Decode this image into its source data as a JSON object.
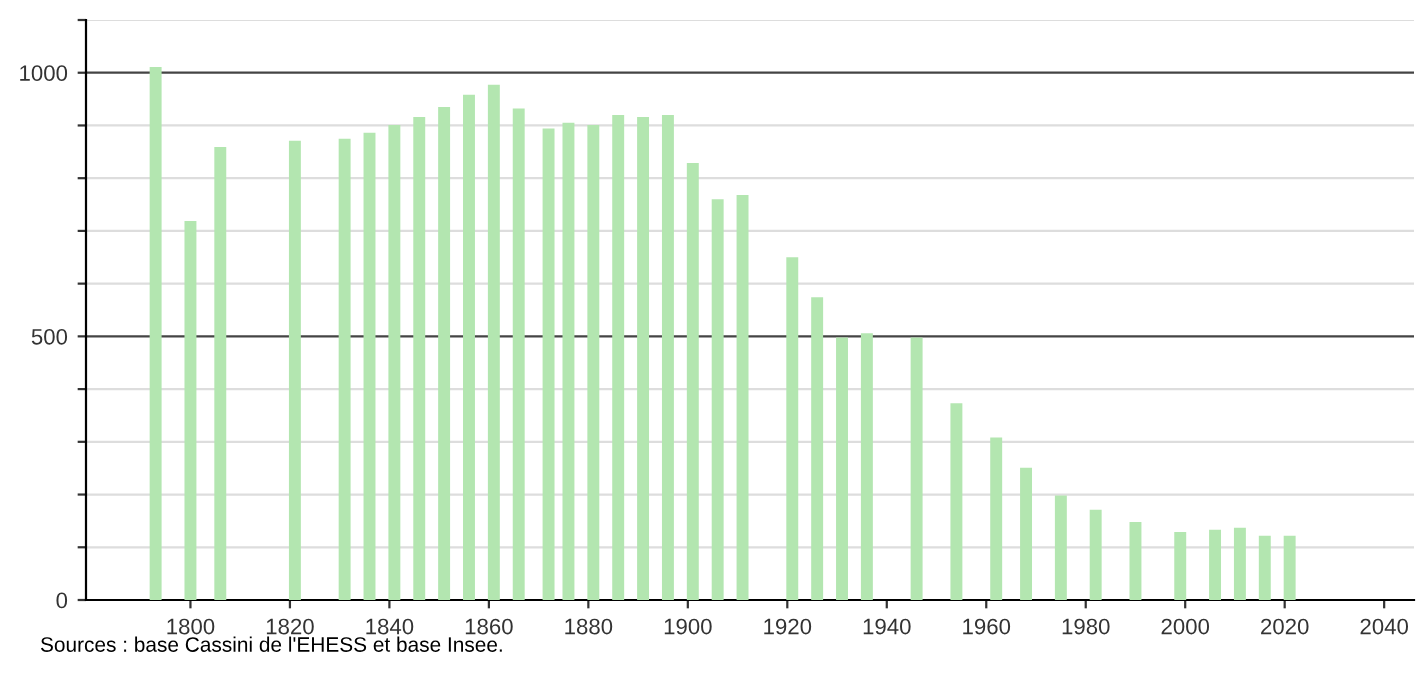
{
  "chart_data": {
    "type": "bar",
    "x": [
      1793,
      1800,
      1806,
      1821,
      1831,
      1836,
      1841,
      1846,
      1851,
      1856,
      1861,
      1866,
      1872,
      1876,
      1881,
      1886,
      1891,
      1896,
      1901,
      1906,
      1911,
      1921,
      1926,
      1931,
      1936,
      1946,
      1954,
      1962,
      1968,
      1975,
      1982,
      1990,
      1999,
      2006,
      2011,
      2016,
      2021
    ],
    "values": [
      1011,
      719,
      859,
      871,
      875,
      886,
      901,
      916,
      935,
      958,
      977,
      932,
      894,
      905,
      901,
      920,
      916,
      920,
      829,
      760,
      768,
      650,
      574,
      498,
      506,
      498,
      373,
      308,
      251,
      198,
      171,
      148,
      129,
      133,
      137,
      122,
      122
    ],
    "color": "#b3e6b0",
    "xlim": [
      1779,
      2046
    ],
    "xticks": [
      1800,
      1820,
      1840,
      1860,
      1880,
      1900,
      1920,
      1940,
      1960,
      1980,
      2000,
      2020,
      2040
    ],
    "ylim": [
      0,
      1100
    ],
    "yticks": [
      0,
      {
        "value": 100,
        "label": null
      },
      {
        "value": 200,
        "label": null
      },
      {
        "value": 300,
        "label": null
      },
      {
        "value": 400,
        "label": null
      },
      500,
      {
        "value": 600,
        "label": null
      },
      {
        "value": 700,
        "label": null
      },
      {
        "value": 800,
        "label": null
      },
      {
        "value": 900,
        "label": null
      },
      1000,
      {
        "value": 1100,
        "label": null
      }
    ],
    "grid": "y",
    "annotations": [
      "Sources : base Cassini de l'EHESS et base Insee."
    ]
  }
}
